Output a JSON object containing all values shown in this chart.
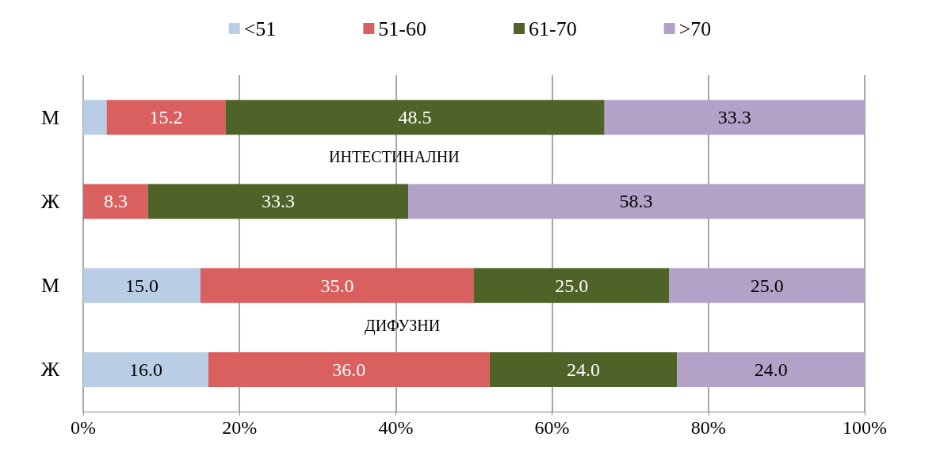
{
  "chart_data": {
    "type": "bar",
    "orientation": "horizontal",
    "stacked": true,
    "categories": [
      "М",
      "Ж",
      "М",
      "Ж"
    ],
    "series": [
      {
        "name": "<51",
        "color": "#b9cde5",
        "values": [
          3.0,
          0,
          15.0,
          16.0
        ],
        "value_labels": [
          null,
          null,
          "15.0",
          "16.0"
        ]
      },
      {
        "name": "51-60",
        "color": "#d9605e",
        "values": [
          15.2,
          8.3,
          35.0,
          36.0
        ],
        "value_labels": [
          "15.2",
          "8.3",
          "35.0",
          "36.0"
        ]
      },
      {
        "name": "61-70",
        "color": "#4f6228",
        "values": [
          48.5,
          33.3,
          25.0,
          24.0
        ],
        "value_labels": [
          "48.5",
          "33.3",
          "25.0",
          "24.0"
        ]
      },
      {
        "name": ">70",
        "color": "#b3a2c7",
        "values": [
          33.3,
          58.3,
          25.0,
          24.0
        ],
        "value_labels": [
          "33.3",
          "58.3",
          "25.0",
          "24.0"
        ]
      }
    ],
    "xlim": [
      0,
      100
    ],
    "xticks": [
      {
        "value": 0,
        "label": "0%"
      },
      {
        "value": 20,
        "label": "20%"
      },
      {
        "value": 40,
        "label": "40%"
      },
      {
        "value": 60,
        "label": "60%"
      },
      {
        "value": 80,
        "label": "80%"
      },
      {
        "value": 100,
        "label": "100%"
      }
    ],
    "annotations": [
      "ИНТЕСТИНАЛНИ",
      "ДИФУЗНИ"
    ],
    "grid": "x",
    "legend": "top"
  }
}
